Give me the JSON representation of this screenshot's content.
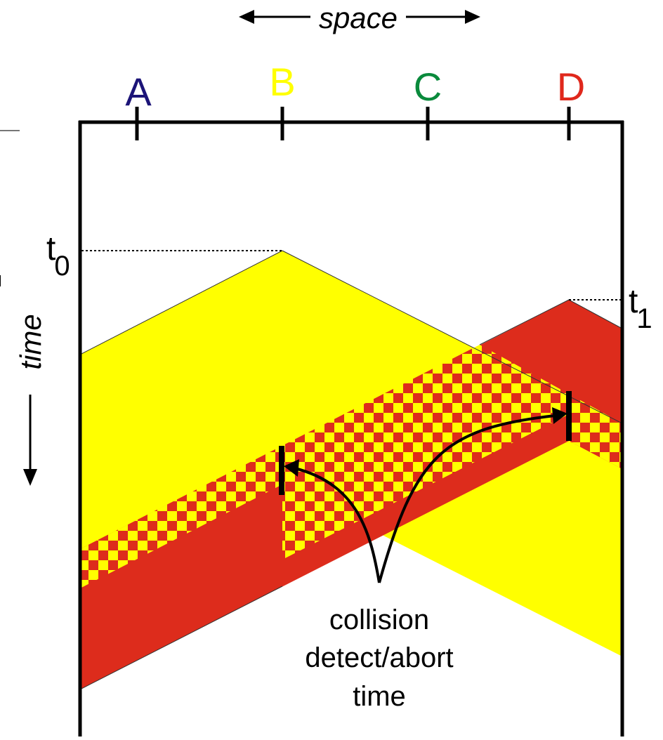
{
  "space_label": "space",
  "time_label": "time",
  "nodes": [
    {
      "id": "A",
      "label": "A",
      "color": "#1c1478"
    },
    {
      "id": "B",
      "label": "B",
      "color": "#ffff00"
    },
    {
      "id": "C",
      "label": "C",
      "color": "#0a8a3c"
    },
    {
      "id": "D",
      "label": "D",
      "color": "#e0281c"
    }
  ],
  "t0": {
    "base": "t",
    "sub": "0"
  },
  "t1": {
    "base": "t",
    "sub": "1"
  },
  "annotation": {
    "line1": "collision",
    "line2": "detect/abort",
    "line3": "time"
  },
  "colors": {
    "yellow_signal": "#ffff00",
    "red_signal": "#dd2c1c",
    "frame": "#000000"
  }
}
